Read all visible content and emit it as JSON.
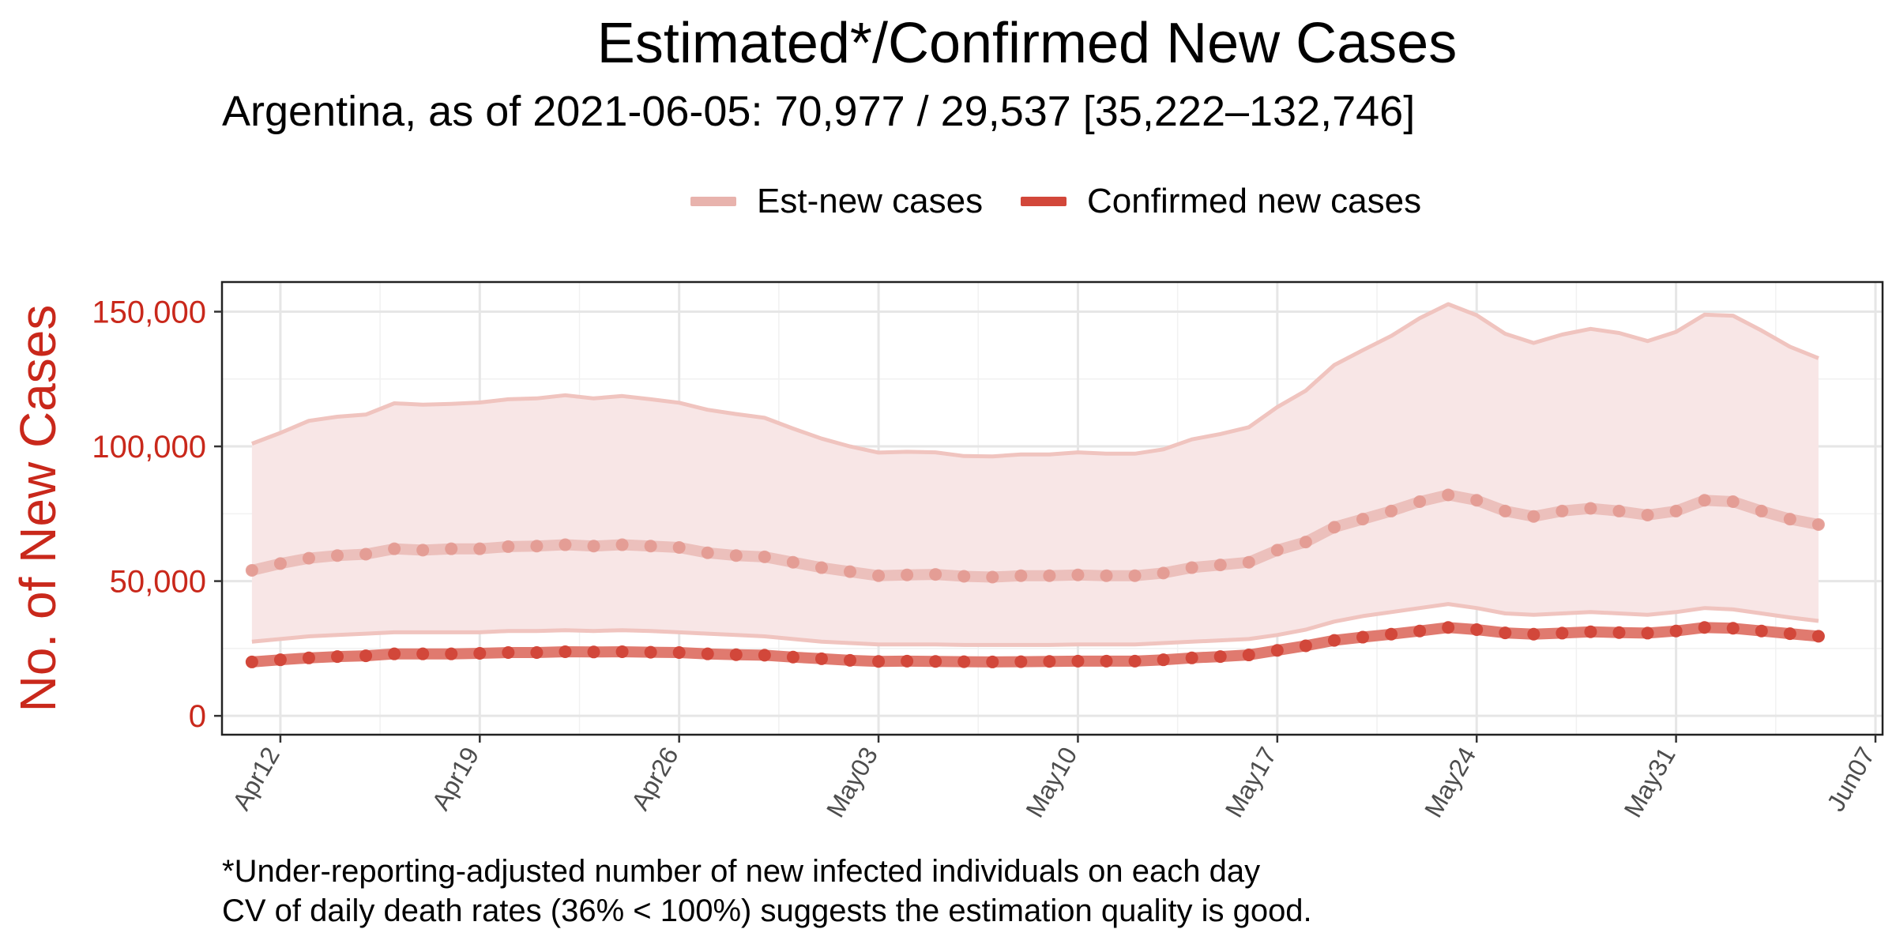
{
  "chart_data": {
    "type": "line",
    "title": "Estimated*/Confirmed New Cases",
    "subtitle": "Argentina, as of 2021-06-05: 70,977 / 29,537 [35,222–132,746]",
    "ylabel": "No. of New Cases",
    "xlabel": "",
    "ylim": [
      -7000,
      161000
    ],
    "y_ticks": [
      0,
      50000,
      100000,
      150000
    ],
    "y_tick_labels": [
      "0",
      "50,000",
      "100,000",
      "150,000"
    ],
    "x_range": [
      "2021-04-10",
      "2021-06-07"
    ],
    "x_ticks": [
      "2021-04-12",
      "2021-04-19",
      "2021-04-26",
      "2021-05-03",
      "2021-05-10",
      "2021-05-17",
      "2021-05-24",
      "2021-05-31",
      "2021-06-07"
    ],
    "x_tick_labels": [
      "Apr12",
      "Apr19",
      "Apr26",
      "May03",
      "May10",
      "May17",
      "May24",
      "May31",
      "Jun07"
    ],
    "grid": true,
    "legend_position": "top",
    "dates": [
      "2021-04-11",
      "2021-04-12",
      "2021-04-13",
      "2021-04-14",
      "2021-04-15",
      "2021-04-16",
      "2021-04-17",
      "2021-04-18",
      "2021-04-19",
      "2021-04-20",
      "2021-04-21",
      "2021-04-22",
      "2021-04-23",
      "2021-04-24",
      "2021-04-25",
      "2021-04-26",
      "2021-04-27",
      "2021-04-28",
      "2021-04-29",
      "2021-04-30",
      "2021-05-01",
      "2021-05-02",
      "2021-05-03",
      "2021-05-04",
      "2021-05-05",
      "2021-05-06",
      "2021-05-07",
      "2021-05-08",
      "2021-05-09",
      "2021-05-10",
      "2021-05-11",
      "2021-05-12",
      "2021-05-13",
      "2021-05-14",
      "2021-05-15",
      "2021-05-16",
      "2021-05-17",
      "2021-05-18",
      "2021-05-19",
      "2021-05-20",
      "2021-05-21",
      "2021-05-22",
      "2021-05-23",
      "2021-05-24",
      "2021-05-25",
      "2021-05-26",
      "2021-05-27",
      "2021-05-28",
      "2021-05-29",
      "2021-05-30",
      "2021-05-31",
      "2021-06-01",
      "2021-06-02",
      "2021-06-03",
      "2021-06-04",
      "2021-06-05"
    ],
    "series": [
      {
        "name": "Est-new cases",
        "color": "#e8b3ad",
        "values": [
          54000,
          56500,
          58500,
          59500,
          60000,
          62000,
          61500,
          62000,
          62000,
          62800,
          63000,
          63500,
          63000,
          63500,
          63000,
          62500,
          60500,
          59500,
          59000,
          57000,
          55000,
          53500,
          52000,
          52300,
          52500,
          51800,
          51500,
          52000,
          52000,
          52300,
          52000,
          52000,
          53000,
          55000,
          56000,
          57000,
          61500,
          64500,
          70000,
          73000,
          76000,
          79500,
          82000,
          80000,
          76000,
          74000,
          76000,
          77000,
          76000,
          74500,
          76000,
          80000,
          79500,
          76000,
          73000,
          71000
        ],
        "lower": [
          27500,
          28500,
          29500,
          30000,
          30500,
          31000,
          31000,
          31000,
          31000,
          31500,
          31500,
          31800,
          31500,
          31800,
          31500,
          31000,
          30500,
          30000,
          29500,
          28500,
          27500,
          27000,
          26500,
          26500,
          26500,
          26300,
          26300,
          26300,
          26300,
          26500,
          26500,
          26500,
          27000,
          27500,
          28000,
          28500,
          30000,
          32000,
          35000,
          37000,
          38500,
          40000,
          41500,
          40000,
          38000,
          37500,
          38000,
          38500,
          38000,
          37500,
          38500,
          40000,
          39500,
          38000,
          36500,
          35222
        ],
        "upper": [
          101000,
          105000,
          109500,
          111000,
          111800,
          116000,
          115500,
          115800,
          116300,
          117500,
          117800,
          119000,
          117800,
          118700,
          117500,
          116200,
          113600,
          112000,
          110600,
          106600,
          102900,
          100000,
          97700,
          98000,
          97800,
          96400,
          96300,
          97000,
          97000,
          97800,
          97300,
          97300,
          98900,
          102600,
          104600,
          107100,
          114600,
          120700,
          130200,
          135700,
          141000,
          147600,
          152800,
          148700,
          141800,
          138400,
          141500,
          143600,
          142100,
          139100,
          142500,
          148900,
          148500,
          143000,
          137000,
          132746
        ],
        "points_shown": true
      },
      {
        "name": "Confirmed new cases",
        "color": "#d2473a",
        "values": [
          20000,
          20800,
          21500,
          22000,
          22300,
          23000,
          23000,
          23000,
          23200,
          23500,
          23500,
          23800,
          23700,
          23800,
          23600,
          23500,
          23000,
          22700,
          22500,
          21800,
          21200,
          20600,
          20200,
          20300,
          20200,
          20100,
          20000,
          20100,
          20200,
          20300,
          20300,
          20300,
          20800,
          21500,
          22000,
          22600,
          24300,
          26000,
          28000,
          29200,
          30300,
          31500,
          32800,
          32000,
          30800,
          30300,
          30700,
          31200,
          30900,
          30700,
          31500,
          32800,
          32500,
          31500,
          30500,
          29537
        ]
      }
    ]
  },
  "footnote": {
    "line1": "*Under-reporting-adjusted number of new infected individuals on each day",
    "line2": "CV of daily death rates (36% < 100%) suggests the estimation quality is good."
  }
}
